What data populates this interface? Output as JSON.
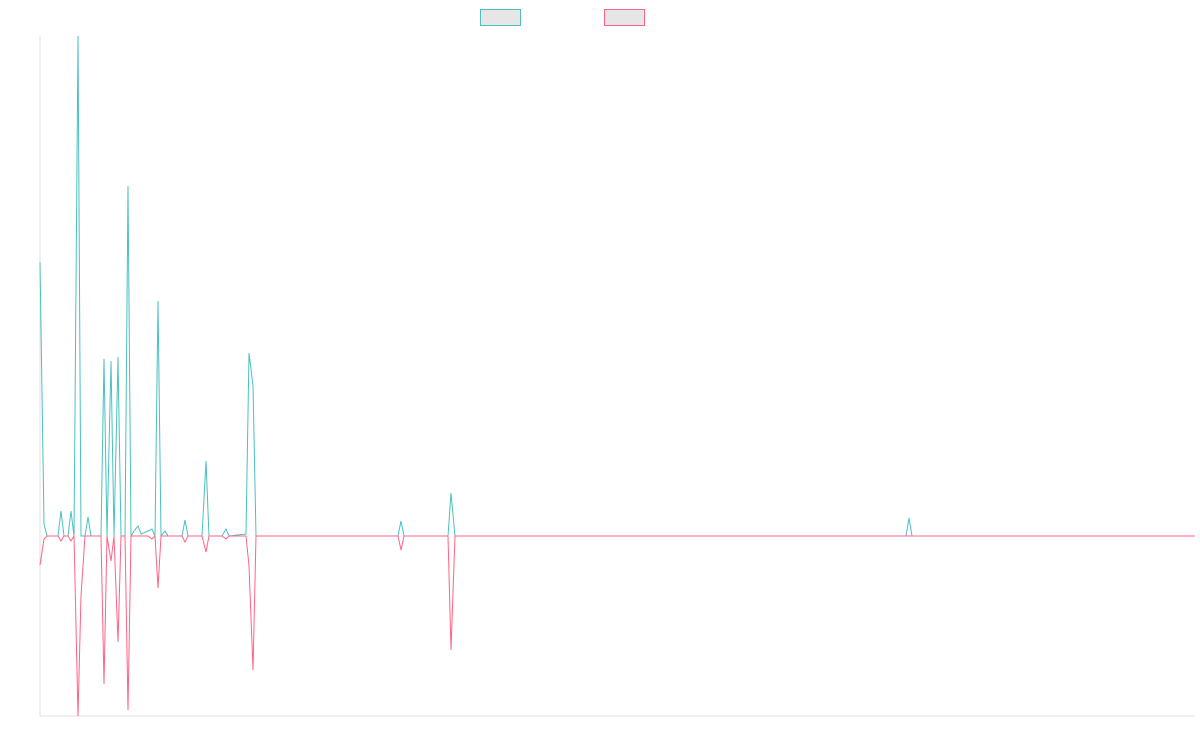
{
  "chart_data": {
    "type": "line",
    "x": [
      0,
      4,
      7,
      18,
      21,
      24,
      28,
      31,
      34,
      38,
      41,
      45,
      48,
      51,
      61,
      64,
      67,
      71,
      74,
      78,
      81,
      85,
      88,
      91,
      94,
      98,
      101,
      108,
      112,
      115,
      118,
      121,
      125,
      128,
      142,
      145,
      148,
      162,
      166,
      169,
      182,
      186,
      189,
      206,
      209,
      213,
      216,
      223,
      358,
      361,
      364,
      408,
      411,
      415,
      866,
      869,
      872,
      1155
    ],
    "xlim": [
      0,
      1155
    ],
    "ylim": [
      -180,
      500
    ],
    "series": [
      {
        "color": "#4bc0c0",
        "values": [
          274,
          12,
          0,
          0,
          25,
          0,
          0,
          25,
          0,
          500,
          0,
          0,
          19,
          0,
          0,
          177,
          0,
          175,
          0,
          179,
          0,
          0,
          350,
          0,
          5,
          10,
          2,
          5,
          7,
          0,
          235,
          0,
          5,
          0,
          0,
          16,
          0,
          0,
          75,
          0,
          0,
          7,
          0,
          2,
          183,
          150,
          0,
          0,
          0,
          15,
          0,
          0,
          43,
          0,
          0,
          18,
          0,
          0
        ]
      },
      {
        "color": "#ff6384",
        "values": [
          -29,
          -3,
          0,
          0,
          -5,
          0,
          0,
          -5,
          0,
          -180,
          -60,
          0,
          0,
          0,
          0,
          -148,
          0,
          -25,
          0,
          -106,
          0,
          0,
          -174,
          0,
          0,
          0,
          0,
          0,
          -3,
          0,
          -52,
          0,
          0,
          0,
          0,
          -6,
          0,
          0,
          -16,
          0,
          0,
          -3,
          0,
          0,
          -30,
          -134,
          0,
          0,
          0,
          -14,
          0,
          0,
          -114,
          0,
          0,
          0,
          0,
          0
        ]
      }
    ]
  }
}
